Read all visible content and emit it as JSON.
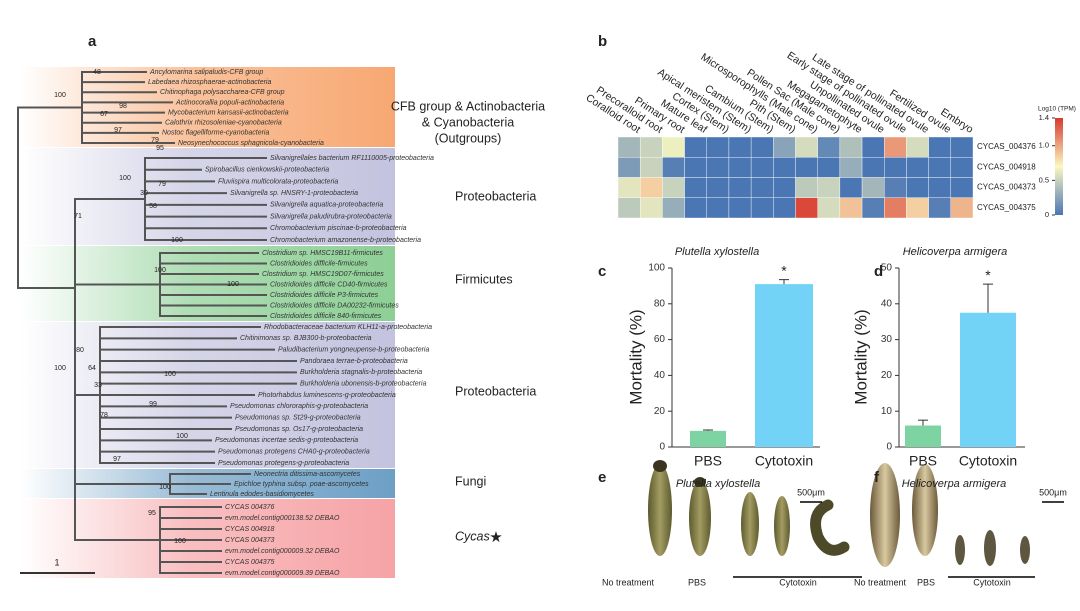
{
  "panel_labels": [
    "a",
    "b",
    "c",
    "d",
    "e",
    "f"
  ],
  "tree": {
    "clades": [
      {
        "label": [
          "CFB group & Actinobacteria",
          "& Cyanobacteria",
          "(Outgroups)"
        ],
        "leaves": [
          "Ancylomarina salipaludis-CFB group",
          "Labedaea rhizosphaerae-actinobacteria",
          "Chitinophaga polysaccharea-CFB group",
          "Actinocorallia populi-actinobacteria",
          "Mycobacterium kansasii-actinobacteria",
          "Calothrix rhizosoleniae-cyanobacteria",
          "Nostoc flagelliforme-cyanobacteria",
          "Neosynechococcus sphagnicola-cyanobacteria"
        ]
      },
      {
        "label": [
          "Proteobacteria"
        ],
        "leaves": [
          "Silvanigrellales bacterium RF1110005-proteobacteria",
          "Spirobacillus cienkowskii-proteobacteria",
          "Fluviispira multicolorata-proteobacteria",
          "Silvanigrella sp. HNSRY-1-proteobacteria",
          "Silvanigrella aquatica-proteobacteria",
          "Silvanigrella paludirubra-proteobacteria",
          "Chromobacterium piscinae-b-proteobacteria",
          "Chromobacterium amazonense-b-proteobacteria"
        ]
      },
      {
        "label": [
          "Firmicutes"
        ],
        "leaves": [
          "Clostridium sp. HMSC19B11-firmicutes",
          "Clostridioides difficile-firmicutes",
          "Clostridium sp. HMSC19D07-firmicutes",
          "Clostridioides difficile CD40-firmicutes",
          "Clostridioides difficile P3-firmicutes",
          "Clostridioides difficile DA00232-firmicutes",
          "Clostridioides difficile 840-firmicutes"
        ]
      },
      {
        "label": [
          "Proteobacteria"
        ],
        "leaves": [
          "Rhodobacteraceae bacterium KLH11-a-proteobacteria",
          "Chitinimonas sp. BJB300-b-proteobacteria",
          "Paludibacterium yongneupense-b-proteobacteria",
          "Pandoraea terrae-b-proteobacteria",
          "Burkholderia stagnalis-b-proteobacteria",
          "Burkholderia ubonensis-b-proteobacteria",
          "Photorhabdus luminescens-g-proteobacteria",
          "Pseudomonas chlororaphis-g-proteobacteria",
          "Pseudomonas sp. St29-g-proteobacteria",
          "Pseudomonas sp. Os17-g-proteobacteria",
          "Pseudomonas incertae sedis-g-proteobacteria",
          "Pseudomonas protegens CHA0-g-proteobacteria",
          "Pseudomonas protegens-g-proteobacteria"
        ]
      },
      {
        "label": [
          "Fungi"
        ],
        "leaves": [
          "Neonectria ditissima-ascomycetes",
          "Epichloe typhina subsp. poae-ascomycetes",
          "Lentinula edodes-basidiomycetes"
        ]
      },
      {
        "label": [
          "Cycas"
        ],
        "leaves": [
          "CYCAS 004376",
          "evm.model.contig000138.52 DEBAO",
          "CYCAS 004918",
          "CYCAS 004373",
          "evm.model.contig000009.32 DEBAO",
          "CYCAS 004375",
          "evm.model.contig000009.39 DEBAO"
        ]
      }
    ],
    "bootstrap": [
      100,
      48,
      98,
      67,
      97,
      79,
      95,
      100,
      79,
      30,
      58,
      71,
      100,
      100,
      100,
      100,
      80,
      64,
      33,
      100,
      78,
      99,
      100,
      97,
      100,
      95,
      100
    ],
    "scale": 1
  },
  "heatmap": {
    "columns": [
      "Coralloid root",
      "Precoralloid root",
      "Primary root",
      "Mature leaf",
      "Cortex (Stem)",
      "Apical meristem (Stem)",
      "Cambium (Stem)",
      "Pith (Stem)",
      "Microsporophylls (Male cone)",
      "Pollen Sac (Male cone)",
      "Megagametophyte",
      "Unpollinated ovule",
      "Early stage of pollinated ovule",
      "Late stage of pollinated ovule",
      "Fertilized ovule",
      "Embryo"
    ],
    "rows": [
      "CYCAS_004376",
      "CYCAS_004918",
      "CYCAS_004373",
      "CYCAS_004375"
    ],
    "values": [
      [
        0.35,
        0.5,
        0.65,
        0,
        0,
        0,
        0,
        0.25,
        0.55,
        0.1,
        0.4,
        0,
        1.05,
        0.55,
        0,
        0
      ],
      [
        0.2,
        0.5,
        0.05,
        0,
        0,
        0,
        0,
        0,
        0,
        0,
        0.3,
        0,
        0,
        0,
        0,
        0
      ],
      [
        0.6,
        0.85,
        0.5,
        0,
        0,
        0,
        0,
        0,
        0.45,
        0.5,
        0,
        0.35,
        0.05,
        0,
        0,
        0
      ],
      [
        0.45,
        0.6,
        0.3,
        0,
        0,
        0,
        0,
        0,
        1.35,
        0.55,
        0.9,
        0.05,
        1.15,
        0.85,
        0.05,
        0.95
      ]
    ],
    "colormap": [
      "#4a76b4",
      "#fbf8c0",
      "#d73a2f"
    ],
    "colorbar": {
      "title": "Log10 (TPM)",
      "lim": [
        0,
        1.4
      ],
      "ticks": [
        0,
        0.5,
        {
          "value": 1,
          "label": "1.0"
        },
        1.4
      ]
    }
  },
  "chart_data": [
    {
      "type": "bar",
      "title": "Plutella xylostella",
      "ylabel": "Mortality (%)",
      "categories": [
        "PBS",
        "Cytotoxin"
      ],
      "values": [
        9,
        91
      ],
      "errors": [
        0.5,
        2.5
      ],
      "colors": [
        "#7dd3a1",
        "#72d3f6"
      ],
      "annotation": "*",
      "ylim": [
        0,
        100
      ],
      "yticks": [
        0,
        20,
        40,
        60,
        80,
        100
      ]
    },
    {
      "type": "bar",
      "title": "Helicoverpa armigera",
      "ylabel": "Mortality (%)",
      "categories": [
        "PBS",
        "Cytotoxin"
      ],
      "values": [
        6,
        37.5
      ],
      "errors": [
        1.5,
        8
      ],
      "colors": [
        "#7dd3a1",
        "#72d3f6"
      ],
      "annotation": "*",
      "ylim": [
        0,
        50
      ],
      "yticks": [
        0,
        10,
        20,
        30,
        40,
        50
      ]
    }
  ],
  "images": [
    {
      "title": "Plutella xylostella",
      "scale": "500μm",
      "labels": [
        "No treatment",
        "PBS",
        "Cytotoxin"
      ]
    },
    {
      "title": "Helicoverpa armigera",
      "scale": "500μm",
      "labels": [
        "No treatment",
        "PBS",
        "Cytotoxin"
      ]
    }
  ]
}
